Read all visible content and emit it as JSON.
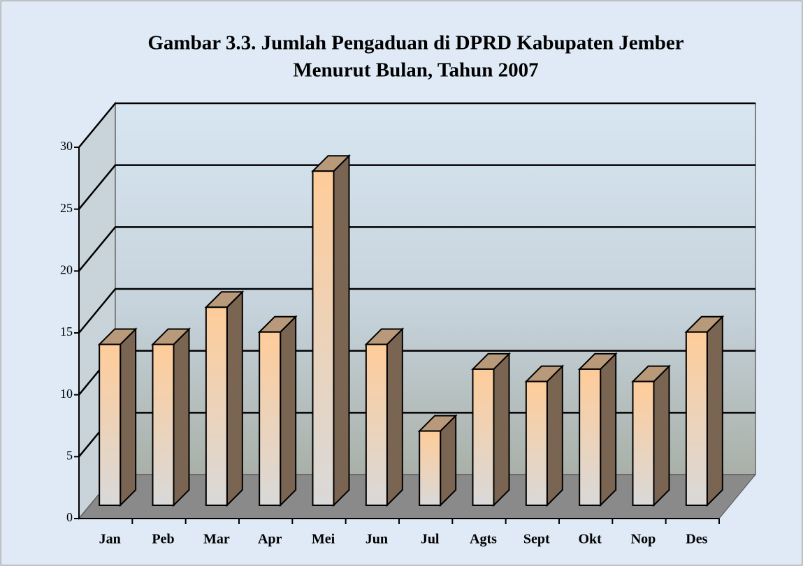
{
  "chart_data": {
    "type": "bar3d",
    "title": [
      "Gambar 3.3. Jumlah Pengaduan di DPRD Kabupaten Jember",
      "Menurut Bulan, Tahun 2007"
    ],
    "categories": [
      "Jan",
      "Peb",
      "Mar",
      "Apr",
      "Mei",
      "Jun",
      "Jul",
      "Agts",
      "Sept",
      "Okt",
      "Nop",
      "Des"
    ],
    "values": [
      13,
      13,
      16,
      14,
      27,
      13,
      6,
      11,
      10,
      11,
      10,
      14
    ],
    "color": "#ffcc99",
    "ylim": [
      0,
      30
    ],
    "yticks": [
      0,
      5,
      10,
      15,
      20,
      25,
      30
    ],
    "grid": true
  }
}
